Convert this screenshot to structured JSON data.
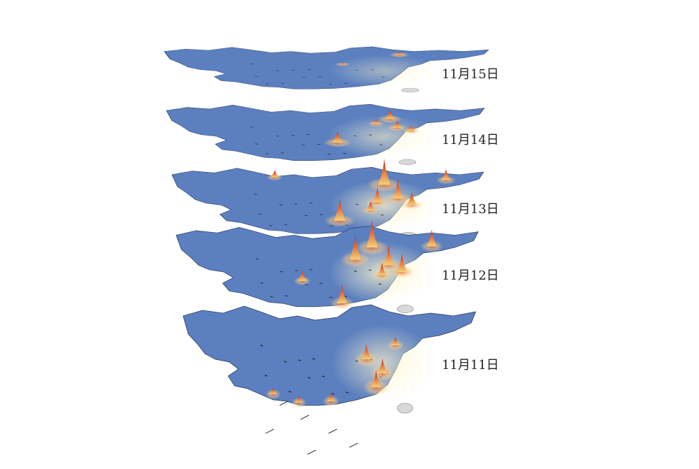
{
  "figure": {
    "layers": [
      {
        "id": "layer-11-15",
        "date_label": "11月15日",
        "intensity": 0.25
      },
      {
        "id": "layer-11-14",
        "date_label": "11月14日",
        "intensity": 0.55
      },
      {
        "id": "layer-11-13",
        "date_label": "11月13日",
        "intensity": 0.9
      },
      {
        "id": "layer-11-12",
        "date_label": "11月12日",
        "intensity": 1.0
      },
      {
        "id": "layer-11-11",
        "date_label": "11月11日",
        "intensity": 0.8
      }
    ],
    "colors": {
      "low": "#5b7fbf",
      "mid": "#f3efc0",
      "high": "#d2412c",
      "island": "#d9d9d9"
    }
  }
}
